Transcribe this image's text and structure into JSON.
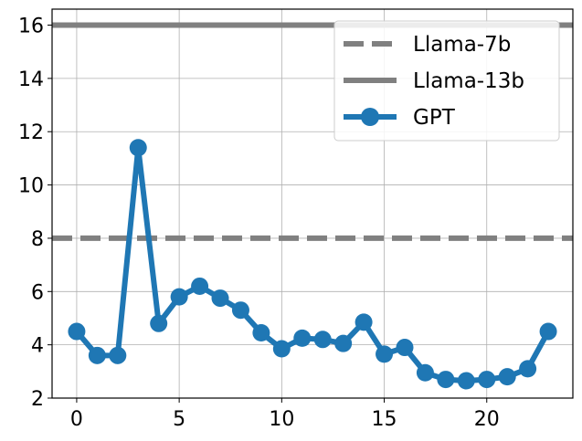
{
  "chart_data": {
    "type": "line",
    "title": "",
    "xlabel": "",
    "ylabel": "",
    "xlim": [
      -1.2,
      24.2
    ],
    "ylim": [
      2,
      16.6
    ],
    "xticks": [
      0,
      5,
      10,
      15,
      20
    ],
    "yticks": [
      2,
      4,
      6,
      8,
      10,
      12,
      14,
      16
    ],
    "grid": true,
    "legend_position": "top-right",
    "reference_lines": [
      {
        "name": "Llama-7b",
        "y": 8,
        "style": "dashed",
        "color": "#808080"
      },
      {
        "name": "Llama-13b",
        "y": 16,
        "style": "solid",
        "color": "#808080"
      }
    ],
    "series": [
      {
        "name": "GPT",
        "color": "#1f77b4",
        "marker": "circle",
        "x": [
          0,
          1,
          2,
          3,
          4,
          5,
          6,
          7,
          8,
          9,
          10,
          11,
          12,
          13,
          14,
          15,
          16,
          17,
          18,
          19,
          20,
          21,
          22,
          23
        ],
        "values": [
          4.5,
          3.6,
          3.6,
          11.4,
          4.8,
          5.8,
          6.2,
          5.75,
          5.3,
          4.45,
          3.85,
          4.25,
          4.2,
          4.05,
          4.85,
          3.65,
          3.9,
          2.95,
          2.7,
          2.65,
          2.7,
          2.8,
          3.1,
          4.5
        ]
      }
    ]
  }
}
